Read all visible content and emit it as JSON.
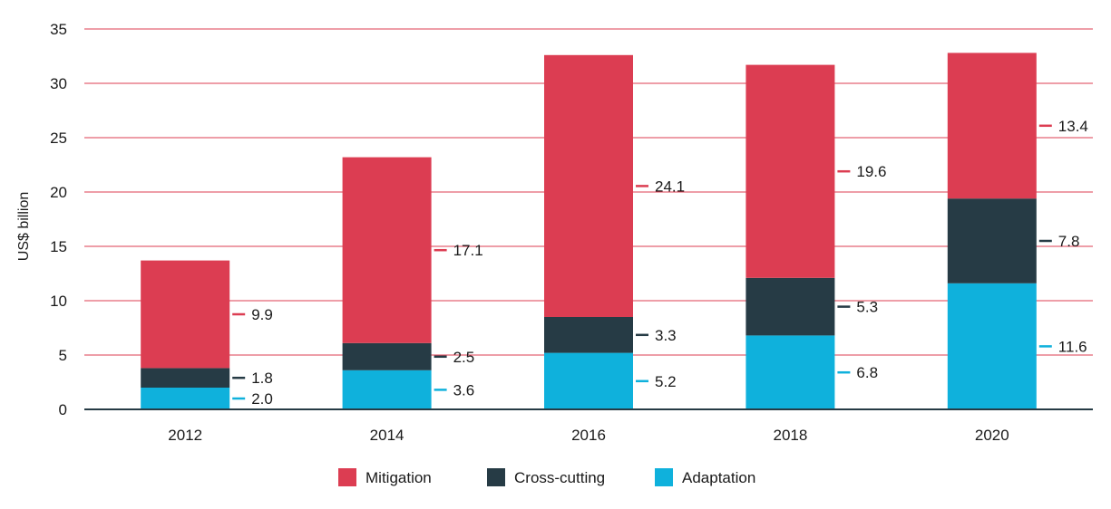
{
  "chart_data": {
    "type": "bar",
    "stacked": true,
    "categories": [
      "2012",
      "2014",
      "2016",
      "2018",
      "2020"
    ],
    "series": [
      {
        "name": "Adaptation",
        "color": "#0fb1dc",
        "values": [
          2.0,
          3.6,
          5.2,
          6.8,
          11.6
        ]
      },
      {
        "name": "Cross-cutting",
        "color": "#263b45",
        "values": [
          1.8,
          2.5,
          3.3,
          5.3,
          7.8
        ]
      },
      {
        "name": "Mitigation",
        "color": "#dc3d52",
        "values": [
          9.9,
          17.1,
          24.1,
          19.6,
          13.4
        ]
      }
    ],
    "value_labels": [
      [
        "2.0",
        "3.6",
        "5.2",
        "6.8",
        "11.6"
      ],
      [
        "1.8",
        "2.5",
        "3.3",
        "5.3",
        "7.8"
      ],
      [
        "9.9",
        "17.1",
        "24.1",
        "19.6",
        "13.4"
      ]
    ],
    "legend_order": [
      "Mitigation",
      "Cross-cutting",
      "Adaptation"
    ],
    "ylabel": "US$ billion",
    "xlabel": "",
    "ylim": [
      0,
      35
    ],
    "yticks": [
      "0",
      "5",
      "10",
      "15",
      "20",
      "25",
      "30",
      "35"
    ],
    "grid": true,
    "grid_color": "#dc3d52",
    "axis_color": "#263b45",
    "legend_position": "bottom"
  }
}
